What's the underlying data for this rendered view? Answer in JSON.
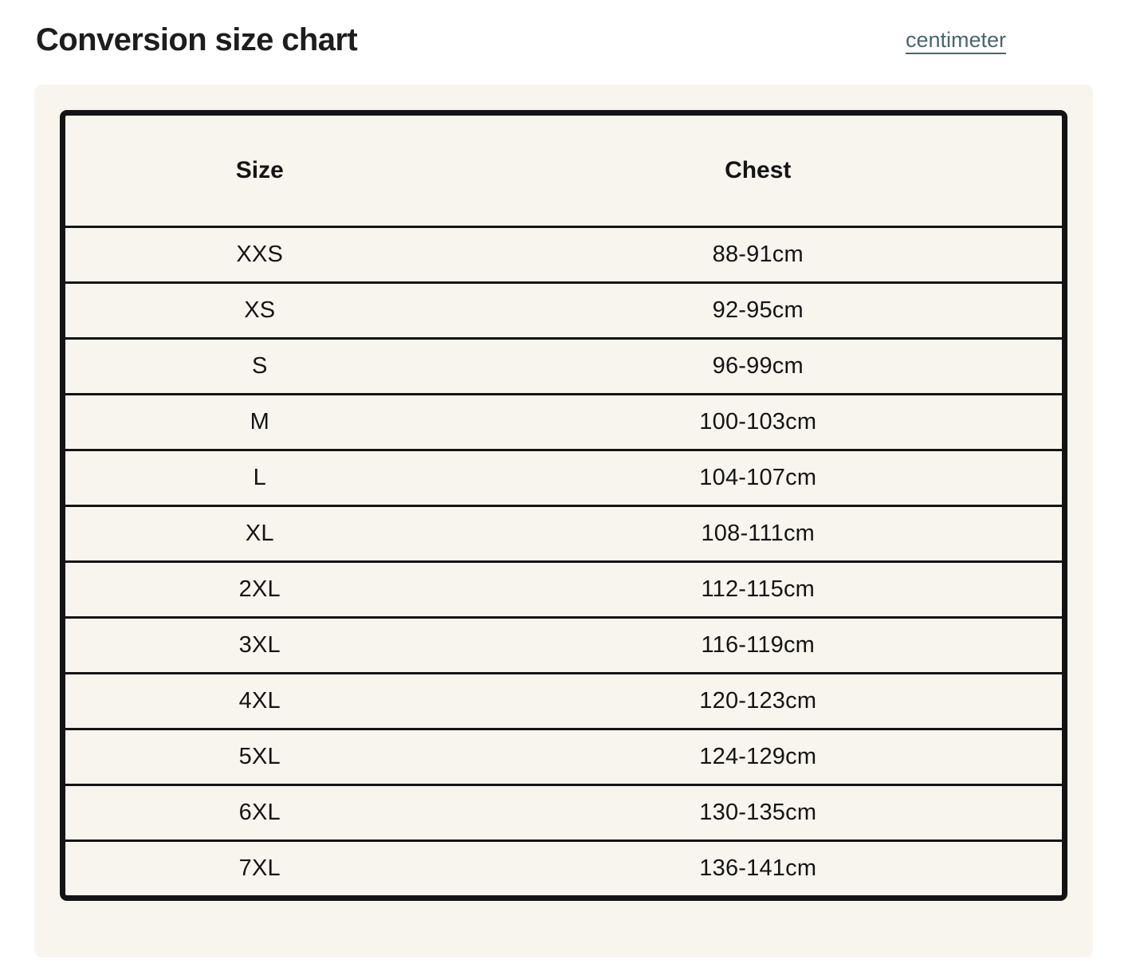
{
  "header": {
    "title": "Conversion size chart",
    "unit_link_label": "centimeter"
  },
  "colors": {
    "page_bg": "#ffffff",
    "card_bg": "#f7f5ee",
    "ink": "#141414",
    "title_ink": "#1d1d1d",
    "link": "#48676c"
  },
  "chart_data": {
    "type": "table",
    "columns": [
      "Size",
      "Chest"
    ],
    "rows": [
      [
        "XXS",
        "88-91cm"
      ],
      [
        "XS",
        "92-95cm"
      ],
      [
        "S",
        "96-99cm"
      ],
      [
        "M",
        "100-103cm"
      ],
      [
        "L",
        "104-107cm"
      ],
      [
        "XL",
        "108-111cm"
      ],
      [
        "2XL",
        "112-115cm"
      ],
      [
        "3XL",
        "116-119cm"
      ],
      [
        "4XL",
        "120-123cm"
      ],
      [
        "5XL",
        "124-129cm"
      ],
      [
        "6XL",
        "130-135cm"
      ],
      [
        "7XL",
        "136-141cm"
      ]
    ]
  }
}
